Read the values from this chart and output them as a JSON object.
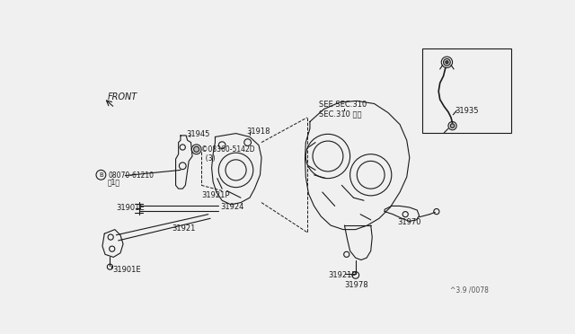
{
  "bg_color": "#f0f0f0",
  "page_ref": "^3.9 /0078",
  "front_label": "FRONT",
  "lbl_08070": "(B)08070-61210\n、1）",
  "lbl_31945": "31945",
  "lbl_31918": "31918",
  "lbl_08360": "©08360-5142D\n  (3)",
  "lbl_31921P_L": "31921P",
  "lbl_31901E_1": "31901E",
  "lbl_31924": "31924",
  "lbl_31921": "31921",
  "lbl_31901E_2": "31901E",
  "lbl_see_sec": "SEE SEC.310\nSEC.310 参照",
  "lbl_31921P_R": "31921P",
  "lbl_31978": "31978",
  "lbl_31970": "31970",
  "lbl_31935": "31935",
  "line_color": "#1a1a1a",
  "line_width": 0.8
}
